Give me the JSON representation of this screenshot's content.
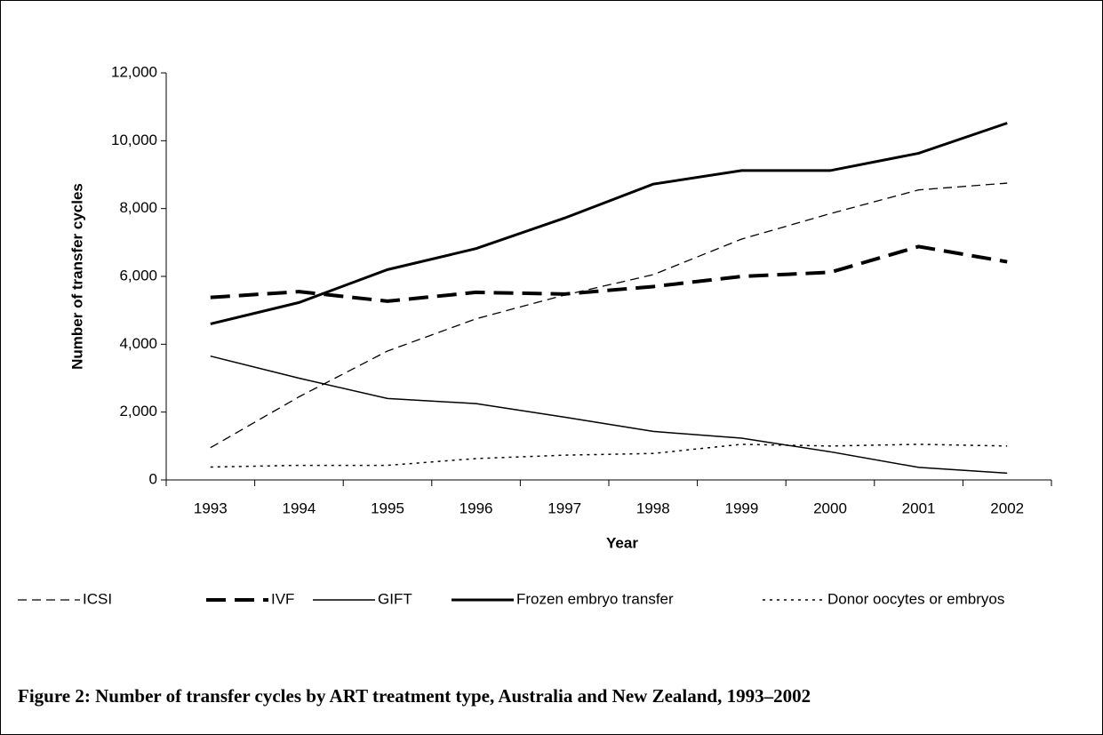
{
  "chart_data": {
    "type": "line",
    "caption": "Figure 2: Number of transfer cycles by ART treatment type, Australia and New Zealand, 1993–2002",
    "x_label": "Year",
    "y_label": "Number of transfer cycles",
    "categories": [
      "1993",
      "1994",
      "1995",
      "1996",
      "1997",
      "1998",
      "1999",
      "2000",
      "2001",
      "2002"
    ],
    "ylim": [
      0,
      12000
    ],
    "yticks": [
      0,
      {
        "value": 2000,
        "label": "2,000"
      },
      {
        "value": 4000,
        "label": "4,000"
      },
      {
        "value": 6000,
        "label": "6,000"
      },
      {
        "value": 8000,
        "label": "8,000"
      },
      {
        "value": 10000,
        "label": "10,000"
      },
      {
        "value": 12000,
        "label": "12,000"
      }
    ],
    "grid": false,
    "legend": "bottom",
    "series": [
      {
        "name": "ICSI",
        "color": "#000000",
        "dash": "10 6",
        "width": 1.3,
        "values": [
          950,
          2450,
          3800,
          4750,
          5450,
          6050,
          7100,
          7850,
          8550,
          8750
        ]
      },
      {
        "name": "IVF",
        "color": "#000000",
        "dash": "22 10",
        "width": 4,
        "values": [
          5380,
          5550,
          5270,
          5530,
          5480,
          5700,
          6000,
          6120,
          6880,
          6430
        ]
      },
      {
        "name": "GIFT",
        "color": "#000000",
        "dash": "none",
        "width": 1.5,
        "values": [
          3650,
          3000,
          2400,
          2250,
          1850,
          1430,
          1230,
          830,
          370,
          200
        ]
      },
      {
        "name": "Frozen embryo transfer",
        "color": "#000000",
        "dash": "none",
        "width": 3,
        "values": [
          4600,
          5230,
          6200,
          6820,
          7720,
          8720,
          9120,
          9120,
          9630,
          10520
        ]
      },
      {
        "name": "Donor oocytes or embryos",
        "color": "#000000",
        "dash": "3 5",
        "width": 1.5,
        "values": [
          380,
          430,
          430,
          630,
          730,
          780,
          1050,
          1000,
          1050,
          1000
        ]
      }
    ]
  }
}
